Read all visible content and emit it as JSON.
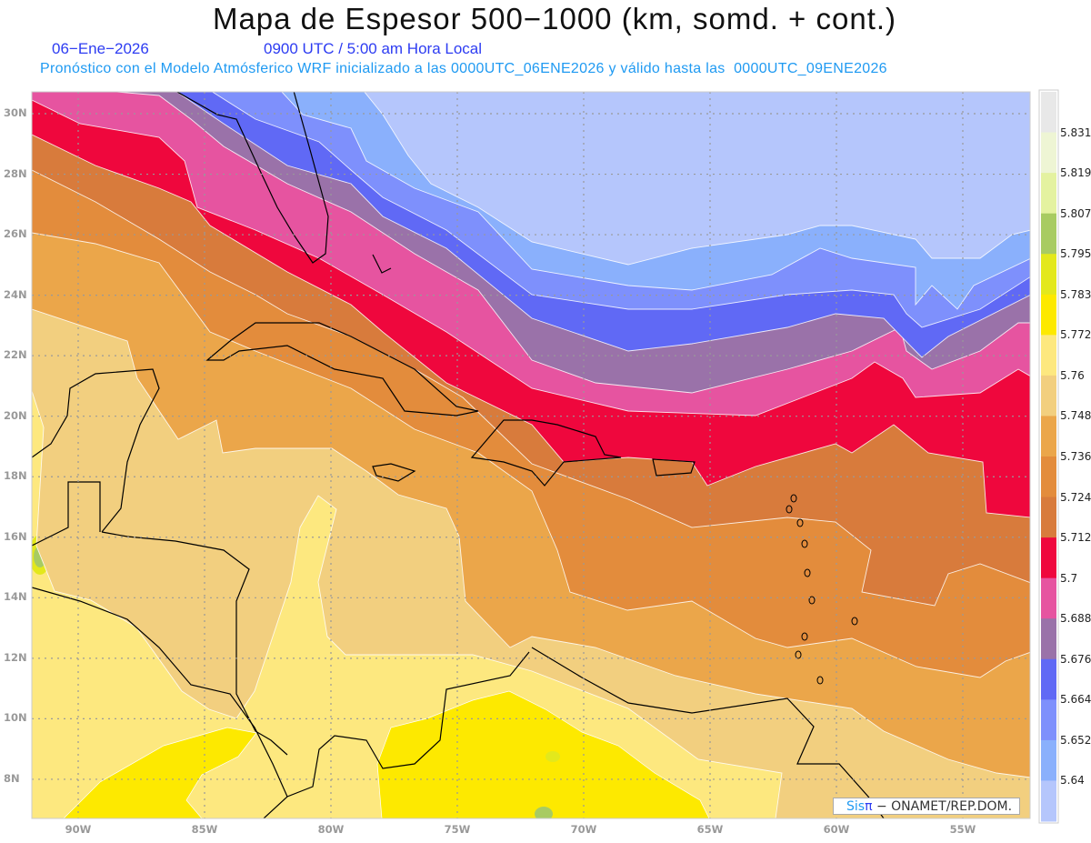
{
  "header": {
    "title": "Mapa de Espesor 500−1000 (km, somd. + cont.)",
    "date": "06−Ene−2026",
    "time": "0900 UTC / 5:00 am Hora Local",
    "subtitle": "Pronóstico con el Modelo Atmósferico WRF inicializado a las 0000UTC_06ENE2026 y válido hasta las  0000UTC_09ENE2026"
  },
  "map": {
    "variable": "Espesor 500-1000 hPa (km)",
    "lat_labels": [
      "30N",
      "28N",
      "26N",
      "24N",
      "22N",
      "20N",
      "18N",
      "16N",
      "14N",
      "12N",
      "10N",
      "8N"
    ],
    "lon_labels": [
      "90W",
      "85W",
      "80W",
      "75W",
      "70W",
      "65W",
      "60W",
      "55W"
    ]
  },
  "colorbar": {
    "levels": [
      "5.831",
      "5.819",
      "5.807",
      "5.795",
      "5.783",
      "5.772",
      "5.76",
      "5.748",
      "5.736",
      "5.724",
      "5.712",
      "5.7",
      "5.688",
      "5.676",
      "5.664",
      "5.652",
      "5.64"
    ],
    "colors": [
      "#e8e8e8",
      "#eef5d4",
      "#e4f2a0",
      "#a8cb62",
      "#e3e81c",
      "#fde900",
      "#fde87f",
      "#f2cf7f",
      "#eba64a",
      "#e38c3c",
      "#d87b3c",
      "#ef073d",
      "#e654a0",
      "#9a72a9",
      "#6069f5",
      "#7e90fc",
      "#8ab0fc",
      "#b5c6fc"
    ]
  },
  "credit": {
    "sis": "Sis",
    "pi": "π",
    "rest": " − ONAMET/REP.DOM."
  }
}
